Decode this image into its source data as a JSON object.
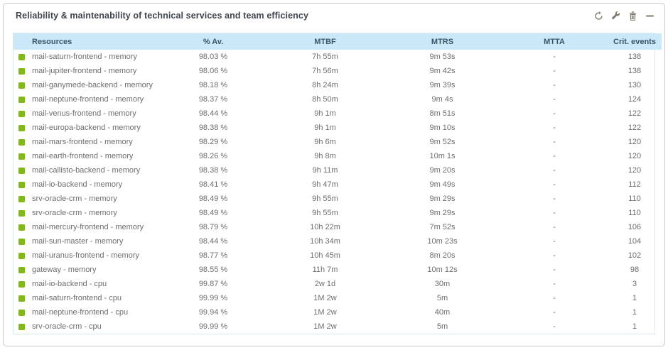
{
  "header": {
    "title": "Reliability & maintenability of technical services and team efficiency",
    "icons": [
      {
        "name": "refresh-icon"
      },
      {
        "name": "wrench-icon"
      },
      {
        "name": "trash-icon"
      },
      {
        "name": "minimize-icon"
      }
    ]
  },
  "colors": {
    "status_ok": "#83b71d",
    "table_header_bg": "#cbe8f8",
    "table_header_text": "#35566b",
    "row_text": "#6e6e6e",
    "table_border": "#d9e7f1",
    "card_border": "#c9c9c9",
    "icon_color": "#7d7669"
  },
  "table": {
    "columns": [
      {
        "key": "status",
        "label": "",
        "align": "left"
      },
      {
        "key": "resource",
        "label": "Resources",
        "align": "left"
      },
      {
        "key": "availability",
        "label": "% Av.",
        "align": "center"
      },
      {
        "key": "mtbf",
        "label": "MTBF",
        "align": "center"
      },
      {
        "key": "mtrs",
        "label": "MTRS",
        "align": "center"
      },
      {
        "key": "mtta",
        "label": "MTTA",
        "align": "center"
      },
      {
        "key": "crit_events",
        "label": "Crit. events",
        "align": "center"
      }
    ],
    "rows": [
      {
        "status": "ok",
        "resource": "mail-saturn-frontend - memory",
        "availability": "98.03 %",
        "mtbf": "7h 55m",
        "mtrs": "9m 53s",
        "mtta": "-",
        "crit_events": "138"
      },
      {
        "status": "ok",
        "resource": "mail-jupiter-frontend - memory",
        "availability": "98.06 %",
        "mtbf": "7h 56m",
        "mtrs": "9m 42s",
        "mtta": "-",
        "crit_events": "138"
      },
      {
        "status": "ok",
        "resource": "mail-ganymede-backend - memory",
        "availability": "98.18 %",
        "mtbf": "8h 24m",
        "mtrs": "9m 39s",
        "mtta": "-",
        "crit_events": "130"
      },
      {
        "status": "ok",
        "resource": "mail-neptune-frontend - memory",
        "availability": "98.37 %",
        "mtbf": "8h 50m",
        "mtrs": "9m 4s",
        "mtta": "-",
        "crit_events": "124"
      },
      {
        "status": "ok",
        "resource": "mail-venus-frontend - memory",
        "availability": "98.44 %",
        "mtbf": "9h 1m",
        "mtrs": "8m 51s",
        "mtta": "-",
        "crit_events": "122"
      },
      {
        "status": "ok",
        "resource": "mail-europa-backend - memory",
        "availability": "98.38 %",
        "mtbf": "9h 1m",
        "mtrs": "9m 10s",
        "mtta": "-",
        "crit_events": "122"
      },
      {
        "status": "ok",
        "resource": "mail-mars-frontend - memory",
        "availability": "98.29 %",
        "mtbf": "9h 6m",
        "mtrs": "9m 52s",
        "mtta": "-",
        "crit_events": "120"
      },
      {
        "status": "ok",
        "resource": "mail-earth-frontend - memory",
        "availability": "98.26 %",
        "mtbf": "9h 8m",
        "mtrs": "10m 1s",
        "mtta": "-",
        "crit_events": "120"
      },
      {
        "status": "ok",
        "resource": "mail-callisto-backend - memory",
        "availability": "98.38 %",
        "mtbf": "9h 11m",
        "mtrs": "9m 20s",
        "mtta": "-",
        "crit_events": "120"
      },
      {
        "status": "ok",
        "resource": "mail-io-backend - memory",
        "availability": "98.41 %",
        "mtbf": "9h 47m",
        "mtrs": "9m 49s",
        "mtta": "-",
        "crit_events": "112"
      },
      {
        "status": "ok",
        "resource": "srv-oracle-crm - memory",
        "availability": "98.49 %",
        "mtbf": "9h 55m",
        "mtrs": "9m 29s",
        "mtta": "-",
        "crit_events": "110"
      },
      {
        "status": "ok",
        "resource": "srv-oracle-crm - memory",
        "availability": "98.49 %",
        "mtbf": "9h 55m",
        "mtrs": "9m 29s",
        "mtta": "-",
        "crit_events": "110"
      },
      {
        "status": "ok",
        "resource": "mail-mercury-frontend - memory",
        "availability": "98.79 %",
        "mtbf": "10h 22m",
        "mtrs": "7m 52s",
        "mtta": "-",
        "crit_events": "106"
      },
      {
        "status": "ok",
        "resource": "mail-sun-master - memory",
        "availability": "98.44 %",
        "mtbf": "10h 34m",
        "mtrs": "10m 23s",
        "mtta": "-",
        "crit_events": "104"
      },
      {
        "status": "ok",
        "resource": "mail-uranus-frontend - memory",
        "availability": "98.77 %",
        "mtbf": "10h 45m",
        "mtrs": "8m 20s",
        "mtta": "-",
        "crit_events": "102"
      },
      {
        "status": "ok",
        "resource": "gateway - memory",
        "availability": "98.55 %",
        "mtbf": "11h 7m",
        "mtrs": "10m 12s",
        "mtta": "-",
        "crit_events": "98"
      },
      {
        "status": "ok",
        "resource": "mail-io-backend - cpu",
        "availability": "99.87 %",
        "mtbf": "2w 1d",
        "mtrs": "30m",
        "mtta": "-",
        "crit_events": "3"
      },
      {
        "status": "ok",
        "resource": "mail-saturn-frontend - cpu",
        "availability": "99.99 %",
        "mtbf": "1M 2w",
        "mtrs": "5m",
        "mtta": "-",
        "crit_events": "1"
      },
      {
        "status": "ok",
        "resource": "mail-neptune-frontend - cpu",
        "availability": "99.94 %",
        "mtbf": "1M 2w",
        "mtrs": "40m",
        "mtta": "-",
        "crit_events": "1"
      },
      {
        "status": "ok",
        "resource": "srv-oracle-crm - cpu",
        "availability": "99.99 %",
        "mtbf": "1M 2w",
        "mtrs": "5m",
        "mtta": "-",
        "crit_events": "1"
      }
    ]
  }
}
